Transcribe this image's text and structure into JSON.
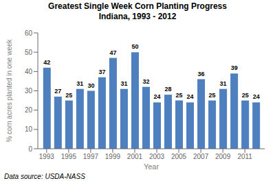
{
  "chart_data": {
    "type": "bar",
    "title": "Greatest Single Week Corn Planting Progress",
    "subtitle": "Indiana, 1993 - 2012",
    "x": [
      1993,
      1994,
      1995,
      1996,
      1997,
      1998,
      1999,
      2000,
      2001,
      2002,
      2003,
      2004,
      2005,
      2006,
      2007,
      2008,
      2009,
      2010,
      2011,
      2012
    ],
    "values": [
      42,
      27,
      25,
      31,
      30,
      37,
      47,
      31,
      50,
      32,
      24,
      28,
      25,
      24,
      36,
      25,
      31,
      39,
      25,
      24
    ],
    "color": "#4E7FBF",
    "xlabel": "Year",
    "ylabel": "% corn acres planted in one week",
    "xlim": [
      1992.2,
      2012.8
    ],
    "xticks": [
      1993,
      1995,
      1997,
      1999,
      2001,
      2003,
      2005,
      2007,
      2009,
      2011
    ],
    "ylim": [
      0,
      60
    ],
    "yticks": [
      0,
      10,
      20,
      30,
      40,
      50,
      60
    ],
    "data_labels": true,
    "grid": false,
    "annotations": [
      "Data source: USDA-NASS"
    ]
  }
}
